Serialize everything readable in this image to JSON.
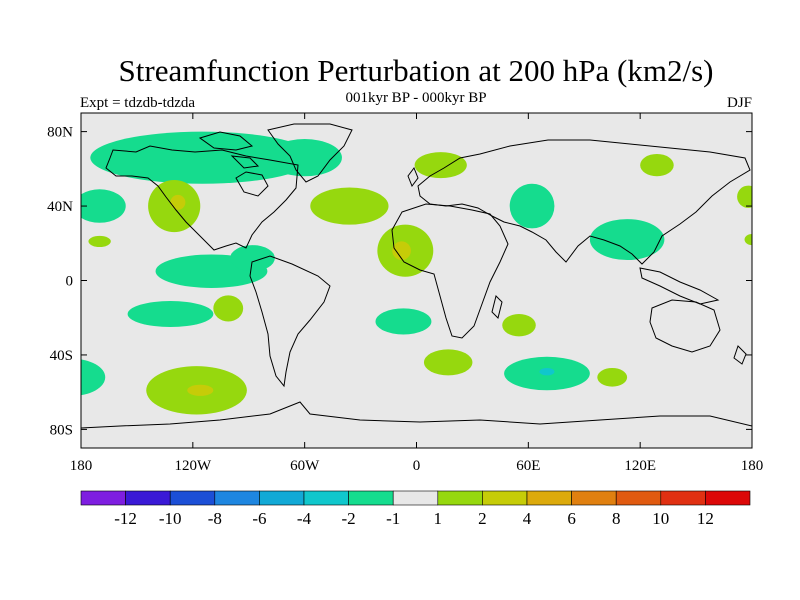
{
  "chart_data": {
    "type": "heatmap",
    "title": "Streamfunction Perturbation at 200 hPa (km2/s)",
    "subtitle": "001kyr BP - 000kyr BP",
    "left_label": "Expt = tdzdb-tdzda",
    "right_label": "DJF",
    "x_ticks": [
      {
        "lon": -180,
        "label": "180"
      },
      {
        "lon": -120,
        "label": "120W"
      },
      {
        "lon": -60,
        "label": "60W"
      },
      {
        "lon": 0,
        "label": "0"
      },
      {
        "lon": 60,
        "label": "60E"
      },
      {
        "lon": 120,
        "label": "120E"
      },
      {
        "lon": 180,
        "label": "180"
      }
    ],
    "y_ticks": [
      {
        "lat": 80,
        "label": "80N"
      },
      {
        "lat": 40,
        "label": "40N"
      },
      {
        "lat": 0,
        "label": "0"
      },
      {
        "lat": -40,
        "label": "40S"
      },
      {
        "lat": -80,
        "label": "80S"
      }
    ],
    "xlim": [
      -180,
      180
    ],
    "ylim": [
      -90,
      90
    ],
    "colorbar": {
      "colors": [
        "#7e1ee0",
        "#3a19d6",
        "#1c4fd6",
        "#1e86e0",
        "#12a9d6",
        "#10c7cc",
        "#15dc8e",
        "#e8e8e8",
        "#96d80e",
        "#c6cc08",
        "#dcaa0c",
        "#e08010",
        "#e05a10",
        "#e03012",
        "#dc0808"
      ],
      "tick_values": [
        -12,
        -10,
        -8,
        -6,
        -4,
        -2,
        -1,
        1,
        2,
        4,
        6,
        8,
        10,
        12
      ],
      "tick_labels": [
        "-12",
        "-10",
        "-8",
        "-6",
        "-4",
        "-2",
        "-1",
        "1",
        "2",
        "4",
        "6",
        "8",
        "10",
        "12"
      ]
    },
    "regions": [
      {
        "name": "arctic-north-america-negative",
        "bin": "-2 to -1",
        "lon": -115,
        "lat": 66,
        "rlon": 60,
        "rlat": 14
      },
      {
        "name": "greenland-atlantic-negative",
        "bin": "-2 to -1",
        "lon": -60,
        "lat": 66,
        "rlon": 20,
        "rlat": 10
      },
      {
        "name": "west-pacific-north-negative",
        "bin": "-2 to -1",
        "lon": -170,
        "lat": 40,
        "rlon": 14,
        "rlat": 9
      },
      {
        "name": "central-america-negative",
        "bin": "-2 to -1",
        "lon": -110,
        "lat": 5,
        "rlon": 30,
        "rlat": 9
      },
      {
        "name": "east-central-america-negative",
        "bin": "-2 to -1",
        "lon": -88,
        "lat": 12,
        "rlon": 12,
        "rlat": 7
      },
      {
        "name": "south-pacific-negative",
        "bin": "-2 to -1",
        "lon": -132,
        "lat": -18,
        "rlon": 23,
        "rlat": 7
      },
      {
        "name": "south-atlantic-negative",
        "bin": "-2 to -1",
        "lon": -7,
        "lat": -22,
        "rlon": 15,
        "rlat": 7
      },
      {
        "name": "south-indian-negative",
        "bin": "-2 to -1",
        "lon": 70,
        "lat": -50,
        "rlon": 23,
        "rlat": 9
      },
      {
        "name": "south-indian-core",
        "bin": "-4 to -2",
        "lon": 70,
        "lat": -49,
        "rlon": 4,
        "rlat": 2
      },
      {
        "name": "middle-east-negative",
        "bin": "-2 to -1",
        "lon": 62,
        "lat": 40,
        "rlon": 12,
        "rlat": 12
      },
      {
        "name": "east-asia-negative",
        "bin": "-2 to -1",
        "lon": 113,
        "lat": 22,
        "rlon": 20,
        "rlat": 11
      },
      {
        "name": "southeast-pacific-negative",
        "bin": "-2 to -1",
        "lon": -185,
        "lat": -52,
        "rlon": 18,
        "rlat": 10
      },
      {
        "name": "north-pacific-positive",
        "bin": "1 to 2",
        "lon": -130,
        "lat": 40,
        "rlon": 14,
        "rlat": 14
      },
      {
        "name": "north-pacific-core",
        "bin": "2 to 4",
        "lon": -128,
        "lat": 42,
        "rlon": 4,
        "rlat": 4
      },
      {
        "name": "north-atlantic-positive",
        "bin": "1 to 2",
        "lon": -36,
        "lat": 40,
        "rlon": 21,
        "rlat": 10
      },
      {
        "name": "east-pacific-positive",
        "bin": "1 to 2",
        "lon": -101,
        "lat": -15,
        "rlon": 8,
        "rlat": 7
      },
      {
        "name": "southeast-pacific-positive",
        "bin": "1 to 2",
        "lon": -118,
        "lat": -59,
        "rlon": 27,
        "rlat": 13
      },
      {
        "name": "southeast-pacific-core",
        "bin": "2 to 4",
        "lon": -116,
        "lat": -59,
        "rlon": 7,
        "rlat": 3
      },
      {
        "name": "africa-positive",
        "bin": "1 to 2",
        "lon": -6,
        "lat": 16,
        "rlon": 15,
        "rlat": 14
      },
      {
        "name": "africa-core",
        "bin": "2 to 4",
        "lon": -8,
        "lat": 16,
        "rlon": 5,
        "rlat": 5
      },
      {
        "name": "scandinavia-positive",
        "bin": "1 to 2",
        "lon": 13,
        "lat": 62,
        "rlon": 14,
        "rlat": 7
      },
      {
        "name": "south-atlantic-positive",
        "bin": "1 to 2",
        "lon": 17,
        "lat": -44,
        "rlon": 13,
        "rlat": 7
      },
      {
        "name": "south-africa-positive",
        "bin": "1 to 2",
        "lon": 55,
        "lat": -24,
        "rlon": 9,
        "rlat": 6
      },
      {
        "name": "south-indian-positive",
        "bin": "1 to 2",
        "lon": 105,
        "lat": -52,
        "rlon": 8,
        "rlat": 5
      },
      {
        "name": "siberia-positive",
        "bin": "1 to 2",
        "lon": 129,
        "lat": 62,
        "rlon": 9,
        "rlat": 6
      },
      {
        "name": "west-pacific-positive",
        "bin": "1 to 2",
        "lon": -170,
        "lat": 21,
        "rlon": 6,
        "rlat": 3
      },
      {
        "name": "dateline-positive",
        "bin": "1 to 2",
        "lon": 178,
        "lat": 45,
        "rlon": 6,
        "rlat": 6
      },
      {
        "name": "dateline-south-positive",
        "bin": "1 to 2",
        "lon": 180,
        "lat": 22,
        "rlon": 4,
        "rlat": 3
      }
    ]
  }
}
